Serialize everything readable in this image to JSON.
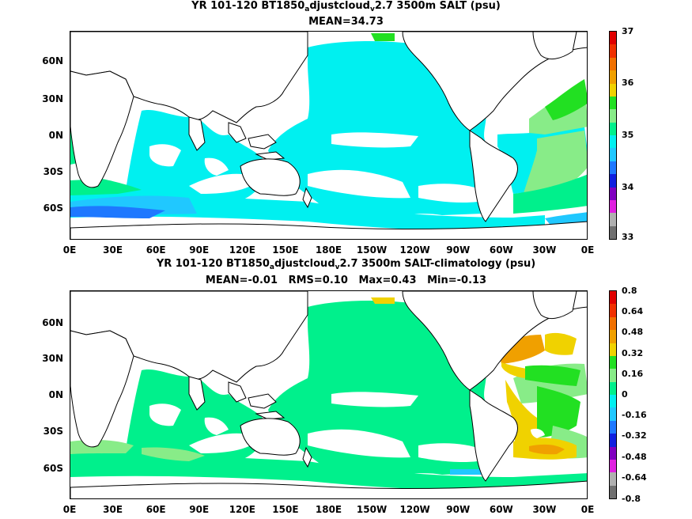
{
  "panel1": {
    "title_a": "YR 101-120 BT1850",
    "title_sub1": "a",
    "title_b": "djustcloud",
    "title_sub2": "v",
    "title_c": "2.7 3500m SALT (psu)",
    "stats": "MEAN=34.73",
    "colorbar_labels": [
      "37",
      "36",
      "35",
      "34",
      "33"
    ]
  },
  "panel2": {
    "title_a": "YR 101-120 BT1850",
    "title_sub1": "a",
    "title_b": "djustcloud",
    "title_sub2": "v",
    "title_c": "2.7 3500m SALT-climatology (psu)",
    "stats": "MEAN=-0.01   RMS=0.10   Max=0.43   Min=-0.13",
    "colorbar_labels": [
      "0.8",
      "0.64",
      "0.48",
      "0.32",
      "0.16",
      "0",
      "-0.16",
      "-0.32",
      "-0.48",
      "-0.64",
      "-0.8"
    ]
  },
  "ylabels": [
    "60N",
    "30N",
    "0N",
    "30S",
    "60S"
  ],
  "xlabels": [
    "0E",
    "30E",
    "60E",
    "90E",
    "120E",
    "150E",
    "180E",
    "150W",
    "120W",
    "90W",
    "60W",
    "30W",
    "0E"
  ],
  "colors": {
    "cyan": "#00f0f0",
    "seagreen": "#00f08c",
    "lightgreen": "#88ec88",
    "green": "#22e022",
    "yellow": "#f0d200",
    "orange": "#f0a000",
    "blue": "#1e78ff",
    "skyblue": "#20c8ff"
  },
  "colorbar1": [
    "#e00000",
    "#f03000",
    "#f07000",
    "#f0a000",
    "#f0d200",
    "#22e022",
    "#88ec88",
    "#00f08c",
    "#00f0f0",
    "#20c8ff",
    "#1e78ff",
    "#1020e0",
    "#8000c0",
    "#e020e0",
    "#b0b0b0",
    "#707070"
  ],
  "colorbar2": [
    "#e00000",
    "#f03000",
    "#f07000",
    "#f0a000",
    "#f0d200",
    "#22e022",
    "#88ec88",
    "#00f08c",
    "#00f0f0",
    "#20c8ff",
    "#1e78ff",
    "#1020e0",
    "#8000c0",
    "#e020e0",
    "#b0b0b0",
    "#707070"
  ]
}
